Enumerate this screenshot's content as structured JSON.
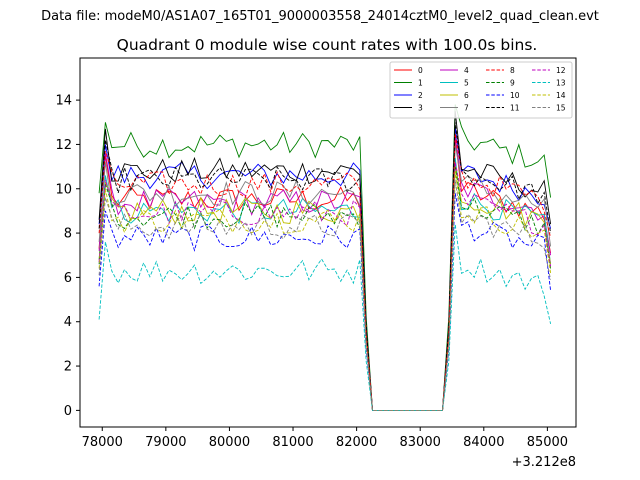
{
  "chart_data": {
    "type": "line",
    "suptitle": "Data file: modeM0/AS1A07_165T01_9000003558_24014cztM0_level2_quad_clean.evt",
    "title": "Quadrant 0 module wise count rates with 100.0s bins.",
    "xlabel": "",
    "ylabel": "",
    "x_offset_label": "+3.212e8",
    "xlim": [
      77650,
      85450
    ],
    "ylim": [
      -0.75,
      15.9
    ],
    "xticks": [
      78000,
      79000,
      80000,
      81000,
      82000,
      83000,
      84000,
      85000
    ],
    "xtick_labels": [
      "78000",
      "79000",
      "80000",
      "81000",
      "82000",
      "83000",
      "84000",
      "85000"
    ],
    "yticks": [
      0,
      2,
      4,
      6,
      8,
      10,
      12,
      14
    ],
    "ytick_labels": [
      "0",
      "2",
      "4",
      "6",
      "8",
      "10",
      "12",
      "14"
    ],
    "legend_location": "top-right",
    "gap": {
      "start": 82200,
      "end": 83350
    },
    "series": [
      {
        "name": "0",
        "color": "#ff0000",
        "style": "solid",
        "level": 9.5,
        "peak": 11.5,
        "post": 10.2
      },
      {
        "name": "1",
        "color": "#008000",
        "style": "solid",
        "level": 12.0,
        "peak": 13.0,
        "post": 12.5
      },
      {
        "name": "2",
        "color": "#0000ff",
        "style": "solid",
        "level": 10.6,
        "peak": 12.0,
        "post": 11.0
      },
      {
        "name": "3",
        "color": "#000000",
        "style": "solid",
        "level": 10.8,
        "peak": 12.7,
        "post": 11.2
      },
      {
        "name": "4",
        "color": "#bf00bf",
        "style": "solid",
        "level": 9.4,
        "peak": 11.6,
        "post": 10.3
      },
      {
        "name": "5",
        "color": "#00bfbf",
        "style": "solid",
        "level": 9.0,
        "peak": 10.6,
        "post": 9.8
      },
      {
        "name": "6",
        "color": "#bfbf00",
        "style": "solid",
        "level": 9.0,
        "peak": 10.3,
        "post": 9.9
      },
      {
        "name": "7",
        "color": "#808080",
        "style": "solid",
        "level": 9.8,
        "peak": 11.2,
        "post": 10.5
      },
      {
        "name": "8",
        "color": "#ff0000",
        "style": "dashed",
        "level": 10.2,
        "peak": 11.7,
        "post": 10.8
      },
      {
        "name": "9",
        "color": "#008000",
        "style": "dashed",
        "level": 8.8,
        "peak": 10.2,
        "post": 9.6
      },
      {
        "name": "10",
        "color": "#0000ff",
        "style": "dashed",
        "level": 7.8,
        "peak": 9.0,
        "post": 8.6
      },
      {
        "name": "11",
        "color": "#000000",
        "style": "dashed",
        "level": 10.4,
        "peak": 12.2,
        "post": 11.0
      },
      {
        "name": "12",
        "color": "#bf00bf",
        "style": "dashed",
        "level": 8.9,
        "peak": 10.4,
        "post": 9.7
      },
      {
        "name": "13",
        "color": "#00bfbf",
        "style": "dashed",
        "level": 6.3,
        "peak": 7.6,
        "post": 6.9
      },
      {
        "name": "14",
        "color": "#bfbf00",
        "style": "dashed",
        "level": 8.6,
        "peak": 10.0,
        "post": 9.3
      },
      {
        "name": "15",
        "color": "#808080",
        "style": "dashed",
        "level": 8.3,
        "peak": 9.6,
        "post": 9.0
      }
    ]
  }
}
